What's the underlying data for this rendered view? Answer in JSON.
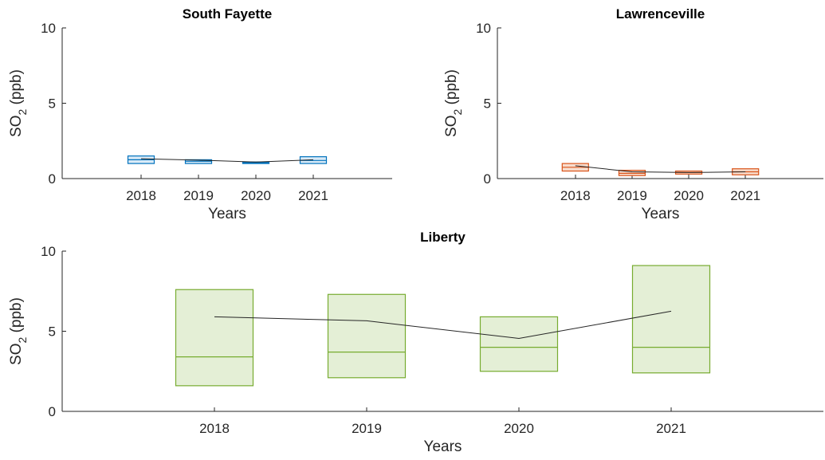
{
  "chart_data": [
    {
      "type": "box",
      "title": "South Fayette",
      "xlabel": "Years",
      "ylabel_main": "SO",
      "ylabel_sub": "2",
      "ylabel_unit": " (ppb)",
      "ylim": [
        0,
        10
      ],
      "yticks": [
        "0",
        "5",
        "10"
      ],
      "categories": [
        "2018",
        "2019",
        "2020",
        "2021"
      ],
      "color": "#0072BD",
      "fill": "#D9EAF7",
      "boxes": [
        {
          "q1": 1.0,
          "median": 1.25,
          "q3": 1.5
        },
        {
          "q1": 1.0,
          "median": 1.15,
          "q3": 1.25
        },
        {
          "q1": 1.0,
          "median": 1.05,
          "q3": 1.1
        },
        {
          "q1": 1.0,
          "median": 1.2,
          "q3": 1.45
        }
      ],
      "mean": [
        1.32,
        1.22,
        1.1,
        1.25
      ]
    },
    {
      "type": "box",
      "title": "Lawrenceville",
      "xlabel": "Years",
      "ylabel_main": "SO",
      "ylabel_sub": "2",
      "ylabel_unit": " (ppb)",
      "ylim": [
        0,
        10
      ],
      "yticks": [
        "0",
        "5",
        "10"
      ],
      "categories": [
        "2018",
        "2019",
        "2020",
        "2021"
      ],
      "color": "#D95319",
      "fill": "#F8DDCE",
      "boxes": [
        {
          "q1": 0.5,
          "median": 0.75,
          "q3": 1.0
        },
        {
          "q1": 0.2,
          "median": 0.35,
          "q3": 0.55
        },
        {
          "q1": 0.3,
          "median": 0.4,
          "q3": 0.5
        },
        {
          "q1": 0.25,
          "median": 0.45,
          "q3": 0.65
        }
      ],
      "mean": [
        0.85,
        0.45,
        0.4,
        0.45
      ]
    },
    {
      "type": "box",
      "title": "Liberty",
      "xlabel": "Years",
      "ylabel_main": "SO",
      "ylabel_sub": "2",
      "ylabel_unit": " (ppb)",
      "ylim": [
        0,
        10
      ],
      "yticks": [
        "0",
        "5",
        "10"
      ],
      "categories": [
        "2018",
        "2019",
        "2020",
        "2021"
      ],
      "color": "#77AC30",
      "fill": "#E4EFD6",
      "boxes": [
        {
          "q1": 1.6,
          "median": 3.4,
          "q3": 7.6
        },
        {
          "q1": 2.1,
          "median": 3.7,
          "q3": 7.3
        },
        {
          "q1": 2.5,
          "median": 4.0,
          "q3": 5.9
        },
        {
          "q1": 2.4,
          "median": 4.0,
          "q3": 9.1
        }
      ],
      "mean": [
        5.9,
        5.65,
        4.55,
        6.25
      ]
    }
  ]
}
